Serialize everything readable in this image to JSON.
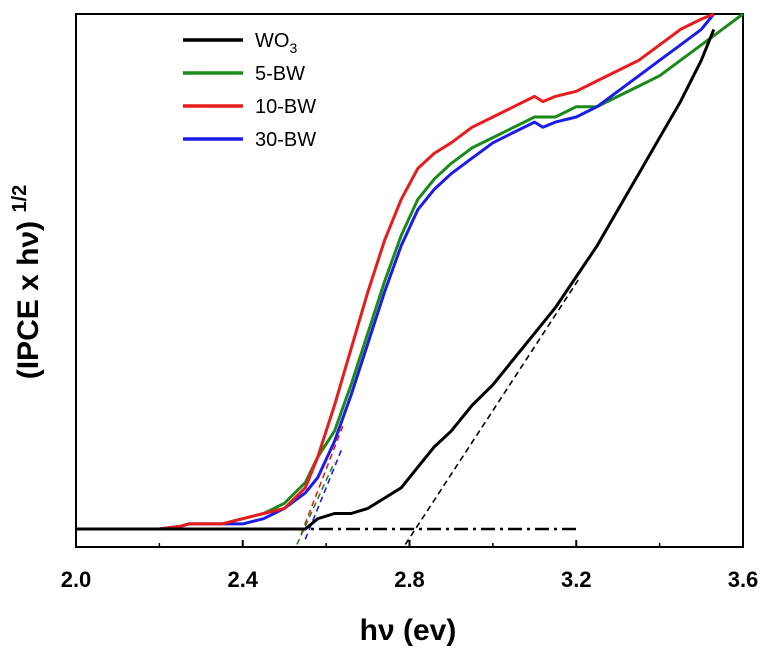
{
  "chart_data": {
    "type": "line",
    "xlabel": "hν (ev)",
    "ylabel": "(IPCE x hν)^1/2",
    "ylabel_parts": {
      "main": "(IPCE x hν)",
      "sup": "1/2"
    },
    "xlim": [
      2.0,
      3.6
    ],
    "ylim": [
      0,
      1.0
    ],
    "y_ticks_shown": false,
    "x_ticks": [
      2.0,
      2.4,
      2.8,
      3.2,
      3.6
    ],
    "x_tick_labels": [
      "2.0",
      "2.4",
      "2.8",
      "3.2",
      "3.6"
    ],
    "grid": false,
    "legend_position": "top-left",
    "series": [
      {
        "name": "WO3",
        "name_main": "WO",
        "name_sub": "3",
        "color": "#000000",
        "x": [
          2.0,
          2.2,
          2.4,
          2.5,
          2.55,
          2.58,
          2.62,
          2.66,
          2.7,
          2.74,
          2.78,
          2.82,
          2.86,
          2.9,
          2.95,
          3.0,
          3.05,
          3.1,
          3.15,
          3.2,
          3.25,
          3.3,
          3.35,
          3.4,
          3.45,
          3.5,
          3.53
        ],
        "y": [
          0.0,
          0.0,
          0.0,
          0.0,
          0.0,
          0.02,
          0.03,
          0.03,
          0.04,
          0.06,
          0.08,
          0.12,
          0.16,
          0.19,
          0.24,
          0.28,
          0.33,
          0.38,
          0.43,
          0.49,
          0.55,
          0.62,
          0.69,
          0.76,
          0.83,
          0.91,
          0.97
        ]
      },
      {
        "name": "5-BW",
        "color": "#1a8a1a",
        "x": [
          2.0,
          2.2,
          2.25,
          2.27,
          2.3,
          2.35,
          2.4,
          2.45,
          2.5,
          2.55,
          2.58,
          2.62,
          2.66,
          2.7,
          2.74,
          2.78,
          2.82,
          2.86,
          2.9,
          2.95,
          3.0,
          3.05,
          3.1,
          3.15,
          3.2,
          3.25,
          3.3,
          3.35,
          3.4,
          3.45,
          3.5,
          3.55,
          3.6
        ],
        "y": [
          0.0,
          0.0,
          0.005,
          0.01,
          0.01,
          0.01,
          0.02,
          0.03,
          0.05,
          0.09,
          0.14,
          0.19,
          0.28,
          0.38,
          0.48,
          0.57,
          0.64,
          0.68,
          0.71,
          0.74,
          0.76,
          0.78,
          0.8,
          0.8,
          0.82,
          0.82,
          0.84,
          0.86,
          0.88,
          0.91,
          0.94,
          0.97,
          1.0
        ]
      },
      {
        "name": "10-BW",
        "color": "#e81c1c",
        "x": [
          2.0,
          2.2,
          2.25,
          2.27,
          2.3,
          2.35,
          2.4,
          2.45,
          2.5,
          2.55,
          2.58,
          2.62,
          2.66,
          2.7,
          2.74,
          2.78,
          2.82,
          2.86,
          2.9,
          2.95,
          3.0,
          3.05,
          3.1,
          3.12,
          3.15,
          3.2,
          3.25,
          3.3,
          3.35,
          3.4,
          3.45,
          3.5,
          3.53
        ],
        "y": [
          0.0,
          0.0,
          0.005,
          0.01,
          0.01,
          0.01,
          0.02,
          0.03,
          0.04,
          0.08,
          0.14,
          0.24,
          0.35,
          0.46,
          0.56,
          0.64,
          0.7,
          0.73,
          0.75,
          0.78,
          0.8,
          0.82,
          0.84,
          0.83,
          0.84,
          0.85,
          0.87,
          0.89,
          0.91,
          0.94,
          0.97,
          0.99,
          1.0
        ]
      },
      {
        "name": "30-BW",
        "color": "#1c1ce8",
        "x": [
          2.0,
          2.2,
          2.25,
          2.27,
          2.3,
          2.35,
          2.4,
          2.45,
          2.5,
          2.55,
          2.58,
          2.62,
          2.66,
          2.7,
          2.74,
          2.78,
          2.82,
          2.86,
          2.9,
          2.95,
          3.0,
          3.05,
          3.1,
          3.12,
          3.15,
          3.2,
          3.25,
          3.3,
          3.35,
          3.4,
          3.45,
          3.5,
          3.53
        ],
        "y": [
          0.0,
          0.0,
          0.005,
          0.01,
          0.01,
          0.01,
          0.01,
          0.02,
          0.04,
          0.07,
          0.1,
          0.17,
          0.26,
          0.36,
          0.46,
          0.55,
          0.62,
          0.66,
          0.69,
          0.72,
          0.75,
          0.77,
          0.79,
          0.78,
          0.79,
          0.8,
          0.82,
          0.85,
          0.88,
          0.91,
          0.94,
          0.97,
          1.0
        ]
      }
    ],
    "annotations": [
      {
        "type": "dash-dot-baseline",
        "color": "#000000",
        "x": [
          2.0,
          3.21
        ],
        "y": [
          0.0,
          0.0
        ]
      },
      {
        "type": "dashed-tangent",
        "color": "#000000",
        "x": [
          2.79,
          3.21
        ],
        "y": [
          -0.03,
          0.49
        ]
      },
      {
        "type": "dashed-tangent",
        "color": "#e81c1c",
        "x": [
          2.54,
          2.64
        ],
        "y": [
          -0.01,
          0.2
        ]
      },
      {
        "type": "dashed-tangent",
        "color": "#1a8a1a",
        "x": [
          2.53,
          2.62
        ],
        "y": [
          -0.03,
          0.13
        ]
      },
      {
        "type": "dashed-tangent",
        "color": "#1c1ce8",
        "x": [
          2.55,
          2.64
        ],
        "y": [
          -0.02,
          0.16
        ]
      }
    ]
  }
}
